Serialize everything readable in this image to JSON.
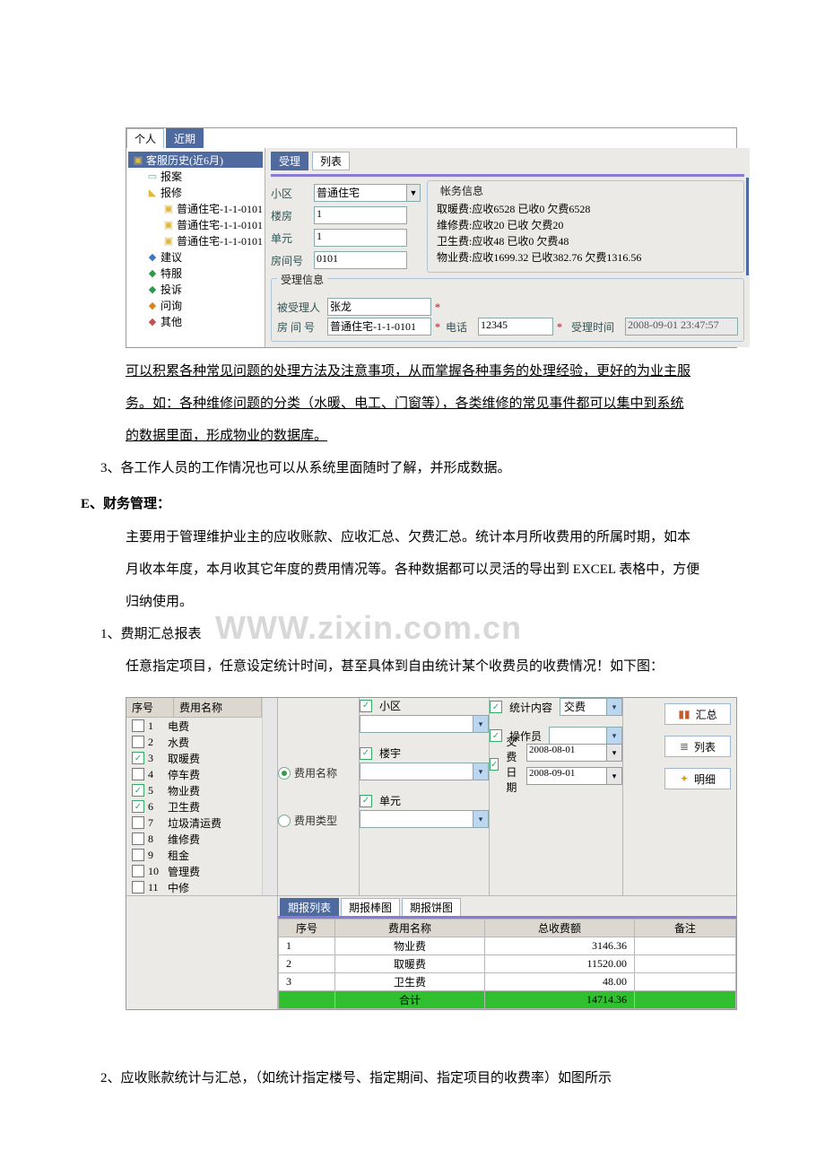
{
  "shot1": {
    "leftTabs": {
      "personal": "个人",
      "recent": "近期"
    },
    "rightTabs": {
      "accept": "受理",
      "list": "列表"
    },
    "tree": {
      "root": "客服历史(近6月)",
      "items": [
        {
          "icon": "file",
          "label": "报案",
          "indent": 1
        },
        {
          "icon": "folder",
          "label": "报修",
          "indent": 1
        },
        {
          "icon": "folder",
          "label": "普通住宅-1-1-0101",
          "indent": 2
        },
        {
          "icon": "folder",
          "label": "普通住宅-1-1-0101",
          "indent": 2
        },
        {
          "icon": "folder",
          "label": "普通住宅-1-1-0101",
          "indent": 2
        },
        {
          "icon": "blue",
          "label": "建议",
          "indent": 1
        },
        {
          "icon": "green",
          "label": "特服",
          "indent": 1
        },
        {
          "icon": "green",
          "label": "投诉",
          "indent": 1
        },
        {
          "icon": "orange",
          "label": "问询",
          "indent": 1
        },
        {
          "icon": "red",
          "label": "其他",
          "indent": 1
        }
      ]
    },
    "form": {
      "labels": {
        "area": "小区",
        "building": "楼房",
        "unit": "单元",
        "room": "房间号"
      },
      "values": {
        "area": "普通住宅",
        "building": "1",
        "unit": "1",
        "room": "0101"
      }
    },
    "account": {
      "legend": "帐务信息",
      "lines": [
        "取暖费:应收6528 已收0 欠费6528",
        "维修费:应收20 已收 欠费20",
        "卫生费:应收48 已收0 欠费48",
        "物业费:应收1699.32 已收382.76 欠费1316.56"
      ]
    },
    "recv": {
      "legend": "受理信息",
      "labels": {
        "person": "被受理人",
        "roomNo": "房 间 号",
        "phone": "电话",
        "time": "受理时间"
      },
      "values": {
        "person": "张龙",
        "roomNo": "普通住宅-1-1-0101",
        "phone": "12345",
        "time": "2008-09-01 23:47:57"
      }
    }
  },
  "text": {
    "p1": "可以积累各种常见问题的处理方法及注意事项，从而掌握各种事务的处理经验，更好的为业主服",
    "p2": "务。如：各种维修问题的分类（水暖、电工、门窗等），各类维修的常见事件都可以集中到系统",
    "p3": "的数据里面，形成物业的数据库。",
    "p4": "3、各工作人员的工作情况也可以从系统里面随时了解，并形成数据。",
    "hE": "E、财务管理：",
    "p5": "主要用于管理维护业主的应收账款、应收汇总、欠费汇总。统计本月所收费用的所属时期，如本",
    "p6": "月收本年度，本月收其它年度的费用情况等。各种数据都可以灵活的导出到 EXCEL 表格中，方便",
    "p7": "归纳使用。",
    "p8": "1、费期汇总报表",
    "p9": "任意指定项目，任意设定统计时间，甚至具体到自由统计某个收费员的收费情况！如下图：",
    "p10": "2、应收账款统计与汇总，（如统计指定楼号、指定期间、指定项目的收费率）如图所示",
    "watermark": "WWW.zixin.com.cn"
  },
  "shot2": {
    "feesHeader": {
      "seq": "序号",
      "name": "费用名称"
    },
    "fees": [
      {
        "n": 1,
        "name": "电费",
        "on": false
      },
      {
        "n": 2,
        "name": "水费",
        "on": false
      },
      {
        "n": 3,
        "name": "取暖费",
        "on": true
      },
      {
        "n": 4,
        "name": "停车费",
        "on": false
      },
      {
        "n": 5,
        "name": "物业费",
        "on": true
      },
      {
        "n": 6,
        "name": "卫生费",
        "on": true
      },
      {
        "n": 7,
        "name": "垃圾清运费",
        "on": false
      },
      {
        "n": 8,
        "name": "维修费",
        "on": false
      },
      {
        "n": 9,
        "name": "租金",
        "on": false
      },
      {
        "n": 10,
        "name": "管理费",
        "on": false
      },
      {
        "n": 11,
        "name": "中修",
        "on": false
      }
    ],
    "radios": {
      "byName": "费用名称",
      "byType": "费用类型"
    },
    "filters": {
      "area": "小区",
      "building": "楼宇",
      "unit": "单元",
      "statContent": "统计内容",
      "statValue": "交费",
      "operator": "操作员",
      "payDate": "交费日期",
      "date1": "2008-08-01",
      "date2": "2008-09-01"
    },
    "buttons": {
      "sum": "汇总",
      "list": "列表",
      "detail": "明细"
    },
    "reportTabs": {
      "list": "期报列表",
      "bar": "期报棒图",
      "pie": "期报饼图"
    },
    "grid": {
      "heads": {
        "seq": "序号",
        "name": "费用名称",
        "amount": "总收费额",
        "remark": "备注"
      },
      "rows": [
        {
          "seq": "1",
          "name": "物业费",
          "amount": "3146.36",
          "remark": ""
        },
        {
          "seq": "2",
          "name": "取暖费",
          "amount": "11520.00",
          "remark": ""
        },
        {
          "seq": "3",
          "name": "卫生费",
          "amount": "48.00",
          "remark": ""
        }
      ],
      "total": {
        "label": "合计",
        "amount": "14714.36"
      }
    }
  }
}
